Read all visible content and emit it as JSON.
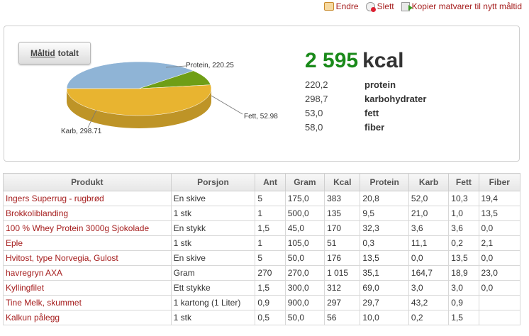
{
  "actions": {
    "edit": "Endre",
    "delete": "Slett",
    "copy": "Kopier matvarer til nytt måltid"
  },
  "panel": {
    "tab_title_underlined": "Måltid",
    "tab_title_rest": "totalt"
  },
  "pie_labels": {
    "protein": "Protein, 220.25",
    "fett": "Fett, 52.98",
    "karb": "Karb, 298.71"
  },
  "summary": {
    "kcal_value": "2 595",
    "kcal_unit": "kcal",
    "macros": [
      {
        "value": "220,2",
        "label": "protein"
      },
      {
        "value": "298,7",
        "label": "karbohydrater"
      },
      {
        "value": "53,0",
        "label": "fett"
      },
      {
        "value": "58,0",
        "label": "fiber"
      }
    ]
  },
  "chart_data": {
    "type": "pie",
    "categories": [
      "Protein",
      "Fett",
      "Karb"
    ],
    "values": [
      220.25,
      52.98,
      298.71
    ],
    "colors": [
      "#8fb4d6",
      "#6f9e16",
      "#e8b430"
    ]
  },
  "table": {
    "headers": [
      "Produkt",
      "Porsjon",
      "Ant",
      "Gram",
      "Kcal",
      "Protein",
      "Karb",
      "Fett",
      "Fiber"
    ],
    "rows": [
      [
        "Ingers Superrug - rugbrød",
        "En skive",
        "5",
        "175,0",
        "383",
        "20,8",
        "52,0",
        "10,3",
        "19,4"
      ],
      [
        "Brokkoliblanding",
        "1 stk",
        "1",
        "500,0",
        "135",
        "9,5",
        "21,0",
        "1,0",
        "13,5"
      ],
      [
        "100 % Whey Protein 3000g Sjokolade",
        "En stykk",
        "1,5",
        "45,0",
        "170",
        "32,3",
        "3,6",
        "3,6",
        "0,0"
      ],
      [
        "Eple",
        "1 stk",
        "1",
        "105,0",
        "51",
        "0,3",
        "11,1",
        "0,2",
        "2,1"
      ],
      [
        "Hvitost, type Norvegia, Gulost",
        "En skive",
        "5",
        "50,0",
        "176",
        "13,5",
        "0,0",
        "13,5",
        "0,0"
      ],
      [
        "havregryn AXA",
        "Gram",
        "270",
        "270,0",
        "1 015",
        "35,1",
        "164,7",
        "18,9",
        "23,0"
      ],
      [
        "Kyllingfilet",
        "Ett stykke",
        "1,5",
        "300,0",
        "312",
        "69,0",
        "3,0",
        "3,0",
        "0,0"
      ],
      [
        "Tine Melk, skummet",
        "1 kartong (1 Liter)",
        "0,9",
        "900,0",
        "297",
        "29,7",
        "43,2",
        "0,9",
        ""
      ],
      [
        "Kalkun pålegg",
        "1 stk",
        "0,5",
        "50,0",
        "56",
        "10,0",
        "0,2",
        "1,5",
        ""
      ]
    ]
  }
}
